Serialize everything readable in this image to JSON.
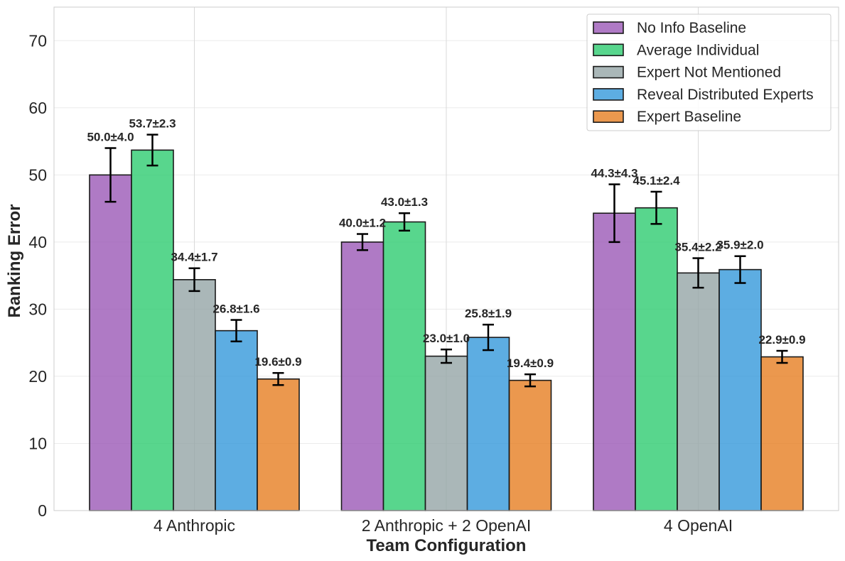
{
  "chart_data": {
    "type": "bar",
    "title": "",
    "xlabel": "Team Configuration",
    "ylabel": "Ranking Error",
    "ylim": [
      0,
      75
    ],
    "yticks": [
      0,
      10,
      20,
      30,
      40,
      50,
      60,
      70
    ],
    "grid": true,
    "legend_position": "top-right",
    "categories": [
      "4 Anthropic",
      "2 Anthropic + 2 OpenAI",
      "4 OpenAI"
    ],
    "series": [
      {
        "name": "No Info Baseline",
        "color": "#9b59b6",
        "values": [
          50.0,
          40.0,
          44.3
        ],
        "errors": [
          4.0,
          1.2,
          4.3
        ],
        "labels": [
          "50.0±4.0",
          "40.0±1.2",
          "44.3±4.3"
        ]
      },
      {
        "name": "Average Individual",
        "color": "#2ecc71",
        "values": [
          53.7,
          43.0,
          45.1
        ],
        "errors": [
          2.3,
          1.3,
          2.4
        ],
        "labels": [
          "53.7±2.3",
          "43.0±1.3",
          "45.1±2.4"
        ]
      },
      {
        "name": "Expert Not Mentioned",
        "color": "#95a5a6",
        "values": [
          34.4,
          23.0,
          35.4
        ],
        "errors": [
          1.7,
          1.0,
          2.2
        ],
        "labels": [
          "34.4±1.7",
          "23.0±1.0",
          "35.4±2.2"
        ]
      },
      {
        "name": "Reveal Distributed Experts",
        "color": "#3498db",
        "values": [
          26.8,
          25.8,
          35.9
        ],
        "errors": [
          1.6,
          1.9,
          2.0
        ],
        "labels": [
          "26.8±1.6",
          "25.8±1.9",
          "35.9±2.0"
        ]
      },
      {
        "name": "Expert Baseline",
        "color": "#e67e22",
        "values": [
          19.6,
          19.4,
          22.9
        ],
        "errors": [
          0.9,
          0.9,
          0.9
        ],
        "labels": [
          "19.6±0.9",
          "19.4±0.9",
          "22.9±0.9"
        ]
      }
    ]
  }
}
